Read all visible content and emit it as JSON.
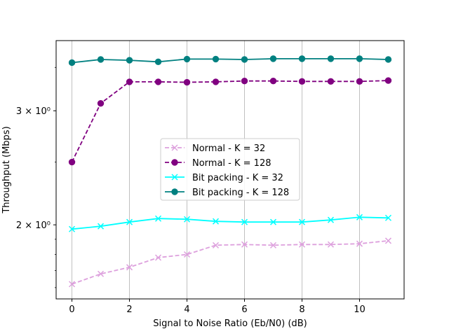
{
  "chart_data": {
    "type": "line",
    "title": "",
    "xlabel": "Signal to Noise Ratio (Eb/N0) (dB)",
    "ylabel": "Throughput (Mbps)",
    "x": [
      0,
      1,
      2,
      3,
      4,
      5,
      6,
      7,
      8,
      9,
      10,
      11
    ],
    "xlim": [
      -0.55,
      11.55
    ],
    "xticks": [
      0,
      2,
      4,
      6,
      8,
      10
    ],
    "yscale": "log",
    "ylim": [
      1.537,
      3.85
    ],
    "yticks": [
      {
        "value": 2,
        "label": "2 × 10⁰"
      },
      {
        "value": 3,
        "label": "3 × 10⁰"
      }
    ],
    "grid": "x-major vertical lines",
    "legend_position": "center",
    "series": [
      {
        "name": "Normal - K = 32",
        "color": "#dda0dd",
        "linestyle": "dashed",
        "marker": "x",
        "values": [
          1.62,
          1.68,
          1.72,
          1.78,
          1.8,
          1.86,
          1.865,
          1.86,
          1.865,
          1.865,
          1.87,
          1.89
        ]
      },
      {
        "name": "Normal - K = 128",
        "color": "#800080",
        "linestyle": "dashed",
        "marker": "circle",
        "values": [
          2.5,
          3.08,
          3.325,
          3.325,
          3.32,
          3.325,
          3.335,
          3.335,
          3.33,
          3.33,
          3.33,
          3.34
        ]
      },
      {
        "name": "Bit packing - K = 32",
        "color": "#00ffff",
        "linestyle": "solid",
        "marker": "x",
        "values": [
          1.97,
          1.99,
          2.02,
          2.045,
          2.04,
          2.025,
          2.02,
          2.02,
          2.02,
          2.035,
          2.055,
          2.05
        ]
      },
      {
        "name": "Bit packing - K = 128",
        "color": "#008080",
        "linestyle": "solid",
        "marker": "circle",
        "values": [
          3.56,
          3.6,
          3.59,
          3.57,
          3.605,
          3.605,
          3.6,
          3.61,
          3.61,
          3.61,
          3.61,
          3.6
        ]
      }
    ]
  }
}
